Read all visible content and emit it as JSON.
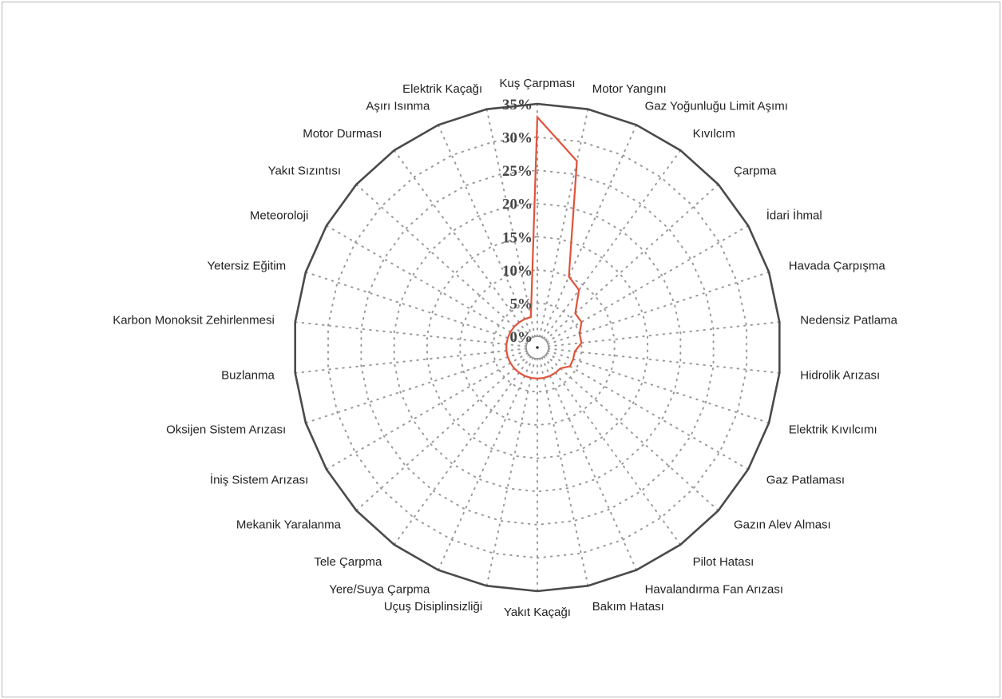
{
  "chart_data": {
    "type": "radar",
    "title": "",
    "categories": [
      "Kuş Çarpması",
      "Motor Yangını",
      "Gaz Yoğunluğu Limit Aşımı",
      "Kıvılcım",
      "Çarpma",
      "İdari İhmal",
      "Havada Çarpışma",
      "Nedensiz Patlama",
      "Hidrolik Arızası",
      "Elektrik Kıvılcımı",
      "Gaz Patlaması",
      "Gazın Alev Alması",
      "Pilot Hatası",
      "Havalandırma Fan Arızası",
      "Bakım Hatası",
      "Yakıt Kaçağı",
      "Uçuş Disiplinsizliği",
      "Yere/Suya Çarpma",
      "Tele Çarpma",
      "Mekanik Yaralanma",
      "İniş Sistem Arızası",
      "Oksijen Sistem Arızası",
      "Buzlanma",
      "Karbon Monoksit Zehirlenmesi",
      "Yetersiz Eğitim",
      "Meteoroloji",
      "Yakıt Sızıntısı",
      "Motor Durması",
      "Aşırı Isınma",
      "Elektrik Kaçağı"
    ],
    "series": [
      {
        "values": [
          33,
          27,
          10,
          9,
          6,
          6,
          5,
          5,
          4,
          4,
          4,
          3,
          3,
          3,
          3,
          3,
          3,
          3,
          3,
          3,
          3,
          3,
          3,
          3,
          3,
          3,
          3,
          3,
          3,
          3
        ],
        "color": "#e0533a"
      }
    ],
    "ticks": [
      "0%",
      "5%",
      "10%",
      "15%",
      "20%",
      "25%",
      "30%",
      "35%"
    ],
    "rmax": 35,
    "grid": true,
    "legend": "none"
  }
}
